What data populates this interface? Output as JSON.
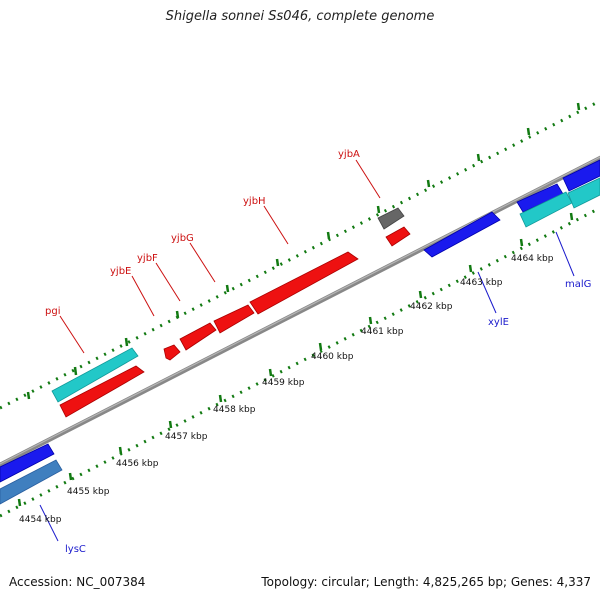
{
  "title": "Shigella sonnei Ss046, complete genome",
  "footer": {
    "accession": "Accession: NC_007384",
    "summary": "Topology: circular; Length: 4,825,265 bp; Genes: 4,337"
  },
  "colors": {
    "forward_red": "#ee1111",
    "cyan": "#22c8c8",
    "blue": "#1a1aee",
    "steel_blue": "#3f7fbf",
    "gray_feature": "#666666",
    "backbone": "#888888",
    "tick": "#127a12",
    "red_label": "#cc1111",
    "blue_label": "#1a1acc"
  },
  "scale_labels": [
    "4454 kbp",
    "4455 kbp",
    "4456 kbp",
    "4457 kbp",
    "4458 kbp",
    "4459 kbp",
    "4460 kbp",
    "4461 kbp",
    "4462 kbp",
    "4463 kbp",
    "4464 kbp"
  ],
  "gene_labels": [
    {
      "name": "pgi",
      "strand": "forward"
    },
    {
      "name": "yjbE",
      "strand": "forward"
    },
    {
      "name": "yjbF",
      "strand": "forward"
    },
    {
      "name": "yjbG",
      "strand": "forward"
    },
    {
      "name": "yjbH",
      "strand": "forward"
    },
    {
      "name": "yjbA",
      "strand": "forward"
    },
    {
      "name": "xylE",
      "strand": "reverse"
    },
    {
      "name": "malG",
      "strand": "reverse"
    },
    {
      "name": "lysC",
      "strand": "reverse"
    }
  ]
}
